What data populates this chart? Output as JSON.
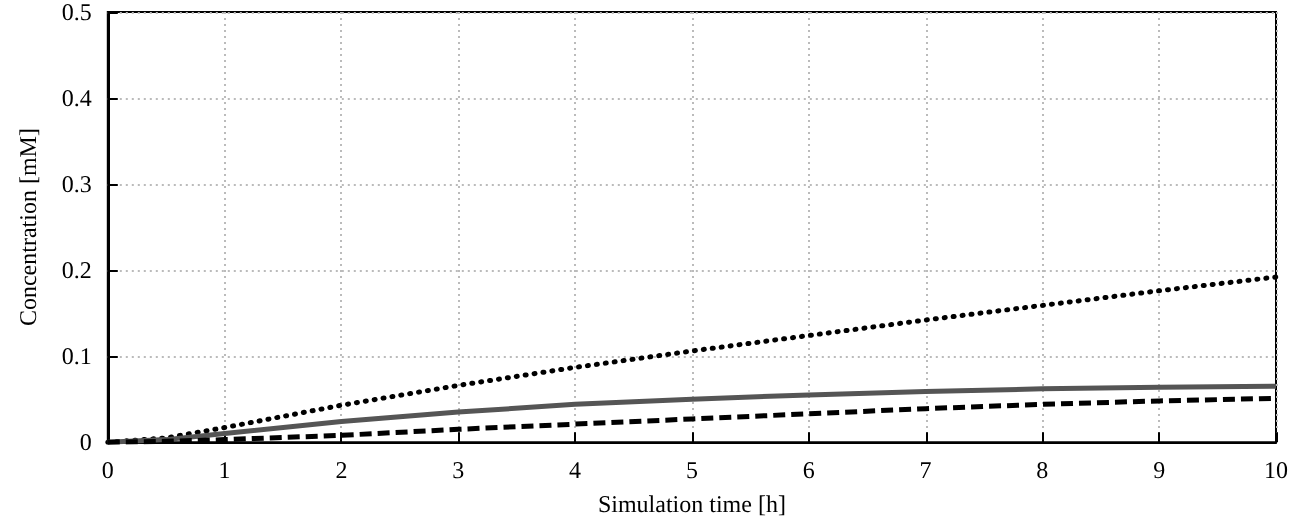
{
  "chart_data": {
    "type": "line",
    "xlabel": "Simulation time [h]",
    "ylabel": "Concentration [mM]",
    "x": [
      0,
      0.5,
      1,
      2,
      3,
      4,
      5,
      6,
      7,
      8,
      9,
      10
    ],
    "series": [
      {
        "color": "#000000",
        "line_style": "dotted",
        "values": [
          0,
          0.005,
          0.017,
          0.043,
          0.066,
          0.087,
          0.106,
          0.124,
          0.142,
          0.159,
          0.176,
          0.192
        ]
      },
      {
        "color": "#555555",
        "line_style": "solid",
        "values": [
          0,
          0.003,
          0.01,
          0.024,
          0.035,
          0.044,
          0.05,
          0.055,
          0.059,
          0.062,
          0.064,
          0.065
        ]
      },
      {
        "color": "#000000",
        "line_style": "dashed",
        "values": [
          0,
          0.001,
          0.003,
          0.008,
          0.015,
          0.021,
          0.027,
          0.033,
          0.039,
          0.044,
          0.048,
          0.051
        ]
      }
    ],
    "xlim": [
      0,
      10
    ],
    "xticks": [
      0,
      1,
      2,
      3,
      4,
      5,
      6,
      7,
      8,
      9,
      10
    ],
    "ylim": [
      0,
      0.5
    ],
    "yticks": [
      0,
      0.1,
      0.2,
      0.3,
      0.4,
      0.5
    ],
    "grid": true,
    "marker": "none"
  }
}
